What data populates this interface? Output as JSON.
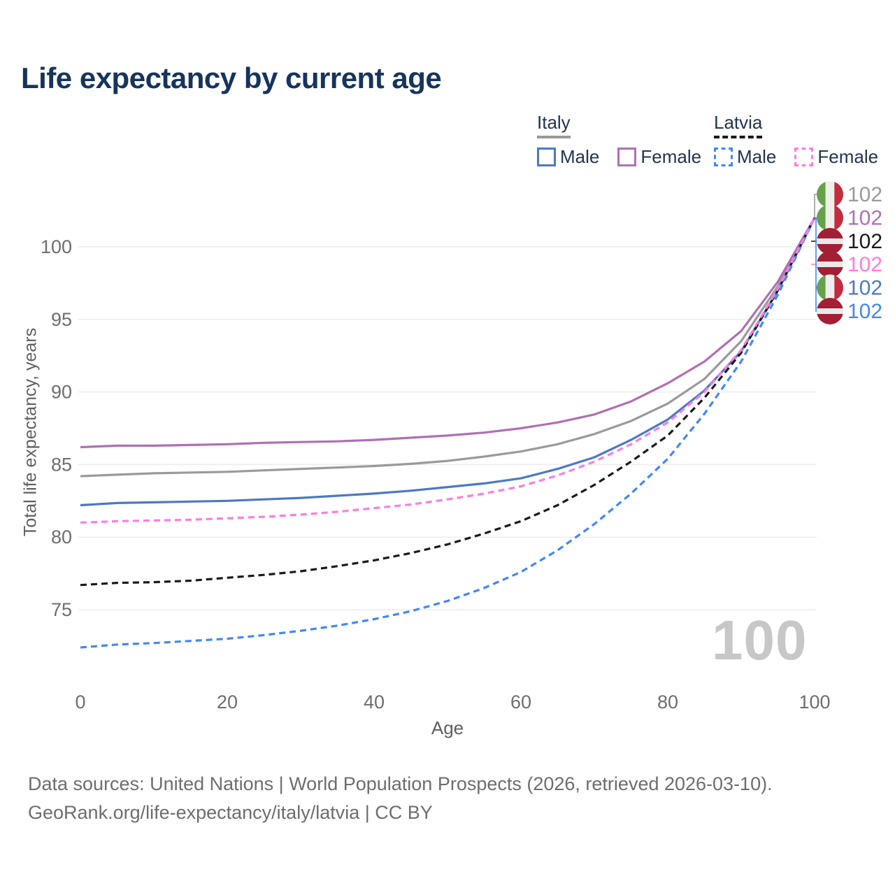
{
  "title": "Life expectancy by current age",
  "legend": {
    "groups": [
      {
        "country": "Italy",
        "line_style": "solid",
        "line_color": "#999999",
        "male_label": "Male",
        "male_color": "#4b79c5",
        "female_label": "Female",
        "female_color": "#b06fb5"
      },
      {
        "country": "Latvia",
        "line_style": "dashed",
        "line_color": "#1a1a1a",
        "male_label": "Male",
        "male_color": "#4287f5",
        "female_label": "Female",
        "female_color": "#ff7ce0"
      }
    ]
  },
  "chart_data": {
    "type": "line",
    "title": "Life expectancy by current age",
    "xlabel": "Age",
    "ylabel": "Total life expectancy, years",
    "x_ticks": [
      0,
      20,
      40,
      60,
      80,
      100
    ],
    "y_ticks": [
      75,
      80,
      85,
      90,
      95,
      100
    ],
    "xlim": [
      0,
      100
    ],
    "ylim": [
      71,
      103.5
    ],
    "grid": "horizontal",
    "legend_position": "top-right",
    "x": [
      0,
      5,
      10,
      15,
      20,
      25,
      30,
      35,
      40,
      45,
      50,
      55,
      60,
      65,
      70,
      75,
      80,
      85,
      90,
      95,
      100
    ],
    "series": [
      {
        "id": "italy-all",
        "name": "Italy",
        "color": "#9a9a9a",
        "dash": false,
        "values": [
          84.2,
          84.3,
          84.4,
          84.45,
          84.5,
          84.6,
          84.7,
          84.8,
          84.9,
          85.05,
          85.25,
          85.55,
          85.9,
          86.4,
          87.1,
          88.0,
          89.2,
          90.9,
          93.5,
          97.3,
          102
        ]
      },
      {
        "id": "italy-male",
        "name": "Italy Male",
        "color": "#4b79c5",
        "dash": false,
        "values": [
          82.2,
          82.35,
          82.4,
          82.45,
          82.5,
          82.6,
          82.7,
          82.85,
          83.0,
          83.2,
          83.45,
          83.7,
          84.05,
          84.7,
          85.5,
          86.7,
          88.1,
          90.1,
          92.8,
          97.0,
          102
        ]
      },
      {
        "id": "italy-female",
        "name": "Italy Female",
        "color": "#b06fb5",
        "dash": false,
        "values": [
          86.2,
          86.3,
          86.3,
          86.35,
          86.4,
          86.5,
          86.55,
          86.6,
          86.7,
          86.85,
          87.0,
          87.2,
          87.5,
          87.9,
          88.45,
          89.35,
          90.6,
          92.1,
          94.2,
          97.6,
          102
        ]
      },
      {
        "id": "latvia-all",
        "name": "Latvia",
        "color": "#1a1a1a",
        "dash": true,
        "values": [
          76.7,
          76.85,
          76.9,
          77.0,
          77.2,
          77.4,
          77.65,
          78.0,
          78.4,
          78.9,
          79.5,
          80.25,
          81.1,
          82.2,
          83.6,
          85.2,
          87.0,
          89.6,
          92.7,
          97.0,
          102
        ]
      },
      {
        "id": "latvia-male",
        "name": "Latvia Male",
        "color": "#4287f5",
        "dash": true,
        "values": [
          72.4,
          72.6,
          72.7,
          72.85,
          73.0,
          73.25,
          73.55,
          73.9,
          74.35,
          74.9,
          75.6,
          76.5,
          77.6,
          79.1,
          80.9,
          83.0,
          85.4,
          88.5,
          92.1,
          96.7,
          102
        ]
      },
      {
        "id": "latvia-female",
        "name": "Latvia Female",
        "color": "#ff7ce0",
        "dash": true,
        "values": [
          81.0,
          81.1,
          81.15,
          81.2,
          81.3,
          81.4,
          81.55,
          81.75,
          82.0,
          82.25,
          82.6,
          83.0,
          83.5,
          84.25,
          85.2,
          86.4,
          87.9,
          90.0,
          92.9,
          97.1,
          102
        ]
      }
    ],
    "end_labels": [
      {
        "value": "102",
        "flag": "italy",
        "color": "#9a9a9a",
        "series": "italy-all"
      },
      {
        "value": "102",
        "flag": "italy",
        "color": "#b06fb5",
        "series": "italy-female"
      },
      {
        "value": "102",
        "flag": "latvia",
        "color": "#1a1a1a",
        "series": "latvia-all"
      },
      {
        "value": "102",
        "flag": "latvia",
        "color": "#ff7ce0",
        "series": "latvia-female"
      },
      {
        "value": "102",
        "flag": "italy",
        "color": "#4b79c5",
        "series": "italy-male"
      },
      {
        "value": "102",
        "flag": "latvia",
        "color": "#4287f5",
        "series": "latvia-male"
      }
    ],
    "flag_colors": {
      "italy_green": "#68a14c",
      "italy_white": "#efefec",
      "italy_red": "#c22c3d",
      "latvia_carmine": "#a41e35",
      "latvia_white": "#e9e9e9"
    }
  },
  "watermark": "100",
  "footer": {
    "line1": "Data sources: United Nations | World Population Prospects (2026, retrieved 2026-03-10).",
    "line2": "GeoRank.org/life-expectancy/italy/latvia | CC BY"
  }
}
